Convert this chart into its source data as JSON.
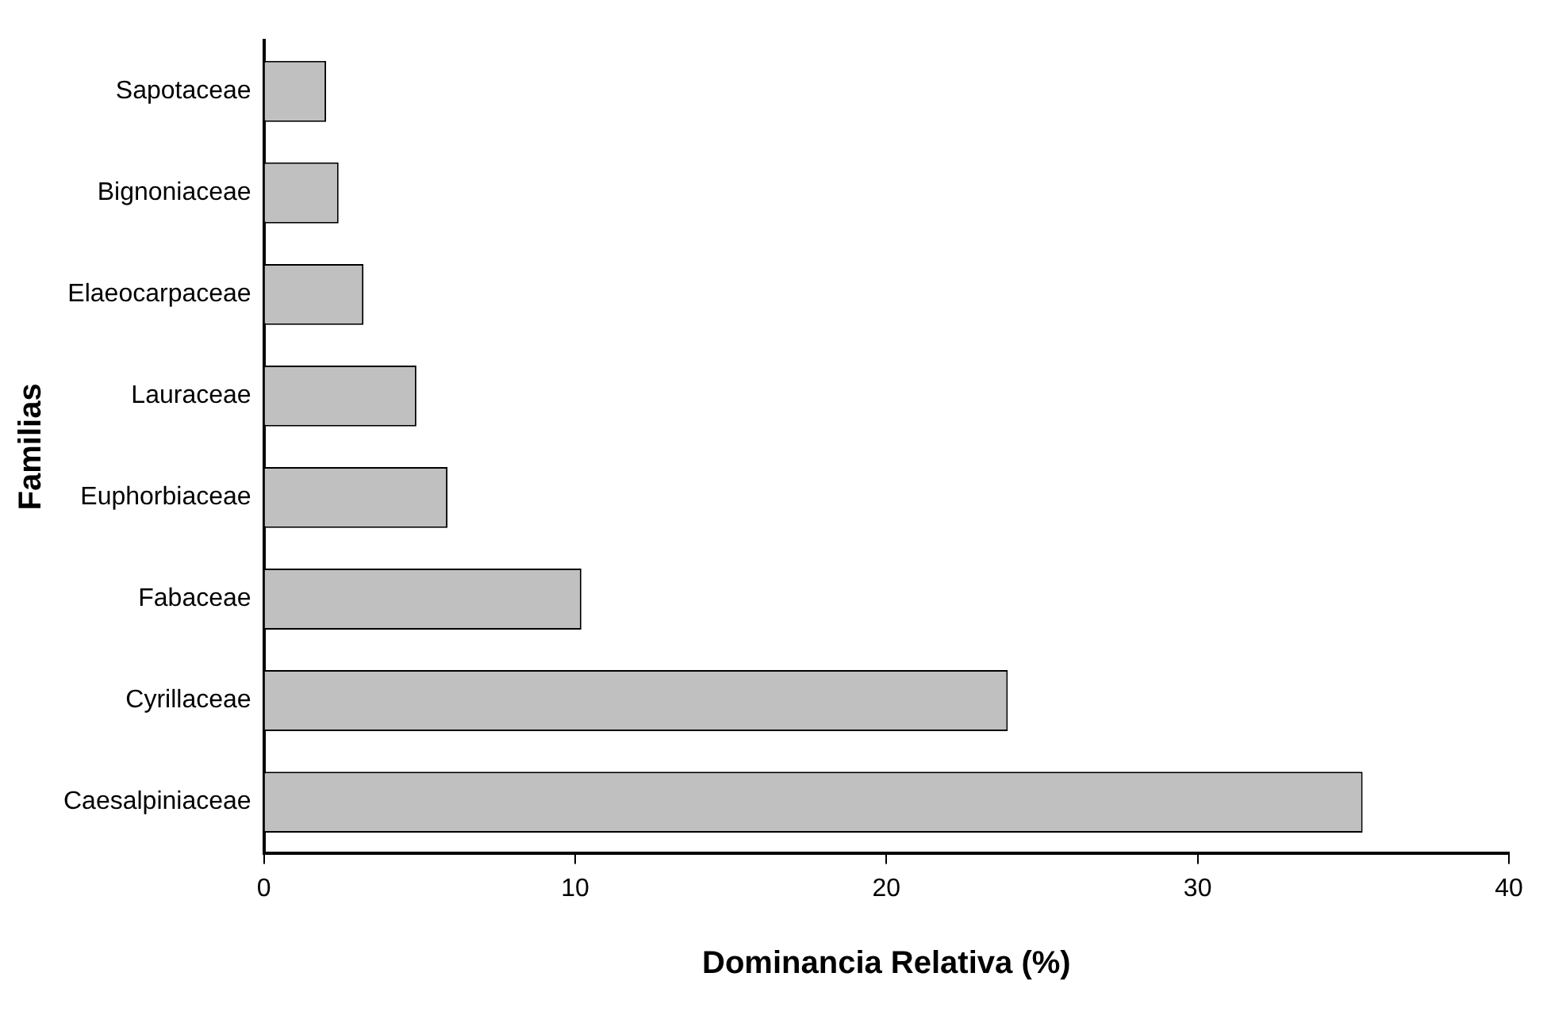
{
  "chart_data": {
    "type": "bar",
    "orientation": "horizontal",
    "xlabel": "Dominancia Relativa (%)",
    "ylabel": "Familias",
    "categories": [
      "Sapotaceae",
      "Bignoniaceae",
      "Elaeocarpaceae",
      "Lauraceae",
      "Euphorbiaceae",
      "Fabaceae",
      "Cyrillaceae",
      "Caesalpiniaceae"
    ],
    "values": [
      2.0,
      2.4,
      3.2,
      4.9,
      5.9,
      10.2,
      23.9,
      35.3
    ],
    "color": "#c0c0c0",
    "xlim": [
      0,
      40
    ],
    "xticks": [
      0,
      10,
      20,
      30,
      40
    ],
    "grid": false,
    "legend": false
  }
}
